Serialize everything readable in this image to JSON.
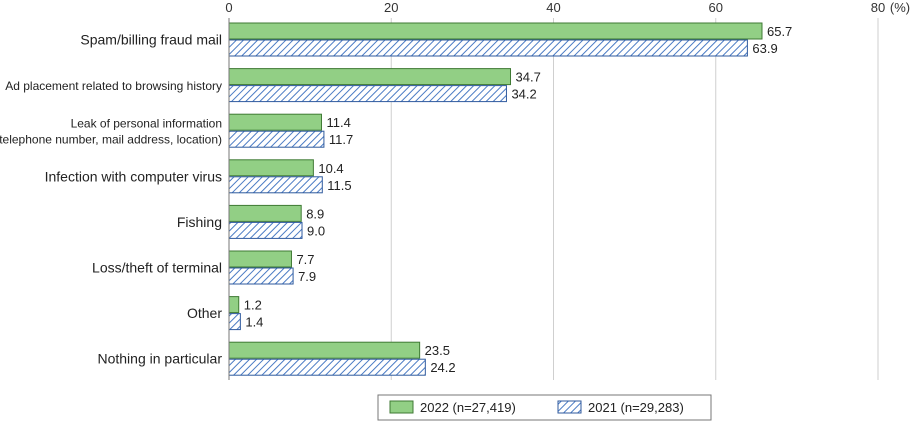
{
  "chart_data": {
    "type": "bar",
    "orientation": "horizontal",
    "unit_label": "(%)",
    "xlim": [
      0,
      80
    ],
    "x_ticks": [
      "0",
      "20",
      "40",
      "60",
      "80"
    ],
    "grid": true,
    "legend_placement": "bottom-right",
    "categories": [
      [
        "Spam/billing fraud mail"
      ],
      [
        "Ad placement related to browsing history"
      ],
      [
        "Leak of personal information",
        "(ex. telephone number, mail address, location)"
      ],
      [
        "Infection with computer virus"
      ],
      [
        "Fishing"
      ],
      [
        "Loss/theft of terminal"
      ],
      [
        "Other"
      ],
      [
        "Nothing in particular"
      ]
    ],
    "series": [
      {
        "name": "2022 (n=27,419)",
        "style": "solid",
        "fill": "#92cf85",
        "stroke": "#3f7a34",
        "values": [
          65.7,
          34.7,
          11.4,
          10.4,
          8.9,
          7.7,
          1.2,
          23.5
        ],
        "labels": [
          "65.7",
          "34.7",
          "11.4",
          "10.4",
          "8.9",
          "7.7",
          "1.2",
          "23.5"
        ]
      },
      {
        "name": "2021 (n=29,283)",
        "style": "hatched",
        "fill": "#4a7bc4",
        "stroke": "#2f5a9e",
        "values": [
          63.9,
          34.2,
          11.7,
          11.5,
          9.0,
          7.9,
          1.4,
          24.2
        ],
        "labels": [
          "63.9",
          "34.2",
          "11.7",
          "11.5",
          "9.0",
          "7.9",
          "1.4",
          "24.2"
        ]
      }
    ]
  }
}
